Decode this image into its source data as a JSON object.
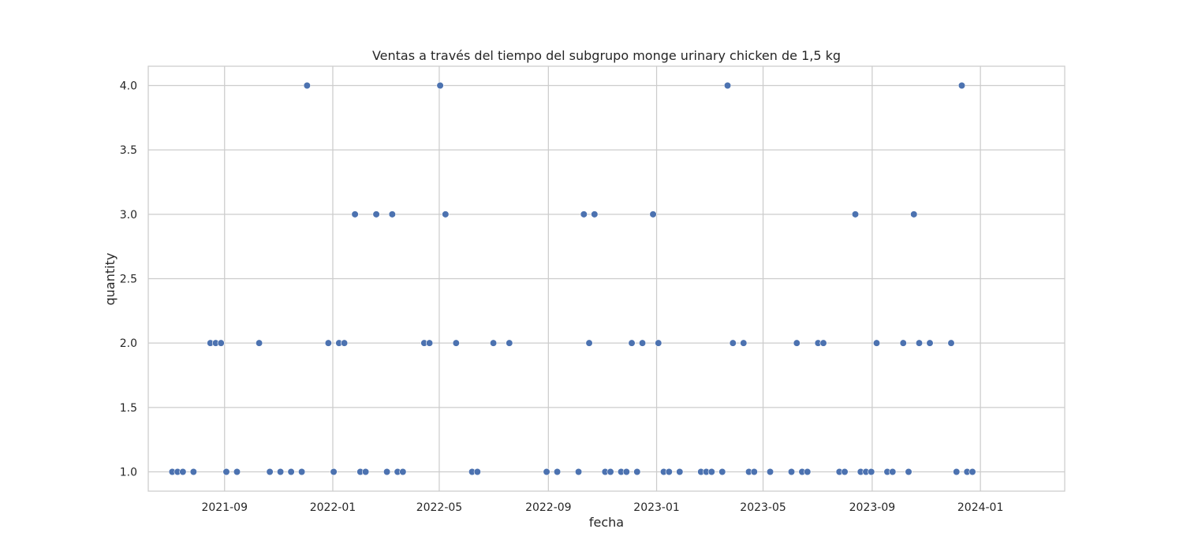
{
  "chart_data": {
    "type": "scatter",
    "title": "Ventas a través del tiempo del subgrupo monge urinary  chicken de 1,5 kg",
    "xlabel": "fecha",
    "ylabel": "quantity",
    "x_tick_labels": [
      "2021-09",
      "2022-01",
      "2022-05",
      "2022-09",
      "2023-01",
      "2023-05",
      "2023-09",
      "2024-01"
    ],
    "y_tick_labels": [
      "1.0",
      "1.5",
      "2.0",
      "2.5",
      "3.0",
      "3.5",
      "4.0"
    ],
    "xlim": [
      "2021-06-07",
      "2024-04-05"
    ],
    "ylim": [
      0.85,
      4.15
    ],
    "grid": true,
    "marker_color": "#4c72b0",
    "series": [
      {
        "points": [
          {
            "x": "2021-07-04",
            "y": 1
          },
          {
            "x": "2021-07-10",
            "y": 1
          },
          {
            "x": "2021-07-16",
            "y": 1
          },
          {
            "x": "2021-07-28",
            "y": 1
          },
          {
            "x": "2021-08-16",
            "y": 2
          },
          {
            "x": "2021-08-22",
            "y": 2
          },
          {
            "x": "2021-08-28",
            "y": 2
          },
          {
            "x": "2021-09-03",
            "y": 1
          },
          {
            "x": "2021-09-15",
            "y": 1
          },
          {
            "x": "2021-10-10",
            "y": 2
          },
          {
            "x": "2021-10-22",
            "y": 1
          },
          {
            "x": "2021-11-03",
            "y": 1
          },
          {
            "x": "2021-11-15",
            "y": 1
          },
          {
            "x": "2021-11-27",
            "y": 1
          },
          {
            "x": "2021-12-03",
            "y": 4
          },
          {
            "x": "2021-12-27",
            "y": 2
          },
          {
            "x": "2022-01-02",
            "y": 1
          },
          {
            "x": "2022-01-08",
            "y": 2
          },
          {
            "x": "2022-01-14",
            "y": 2
          },
          {
            "x": "2022-01-26",
            "y": 3
          },
          {
            "x": "2022-02-01",
            "y": 1
          },
          {
            "x": "2022-02-07",
            "y": 1
          },
          {
            "x": "2022-02-19",
            "y": 3
          },
          {
            "x": "2022-03-03",
            "y": 1
          },
          {
            "x": "2022-03-09",
            "y": 3
          },
          {
            "x": "2022-03-15",
            "y": 1
          },
          {
            "x": "2022-03-21",
            "y": 1
          },
          {
            "x": "2022-04-14",
            "y": 2
          },
          {
            "x": "2022-04-20",
            "y": 2
          },
          {
            "x": "2022-05-02",
            "y": 4
          },
          {
            "x": "2022-05-08",
            "y": 3
          },
          {
            "x": "2022-05-20",
            "y": 2
          },
          {
            "x": "2022-06-07",
            "y": 1
          },
          {
            "x": "2022-06-13",
            "y": 1
          },
          {
            "x": "2022-07-01",
            "y": 2
          },
          {
            "x": "2022-07-19",
            "y": 2
          },
          {
            "x": "2022-08-30",
            "y": 1
          },
          {
            "x": "2022-09-11",
            "y": 1
          },
          {
            "x": "2022-10-05",
            "y": 1
          },
          {
            "x": "2022-10-11",
            "y": 3
          },
          {
            "x": "2022-10-17",
            "y": 2
          },
          {
            "x": "2022-10-23",
            "y": 3
          },
          {
            "x": "2022-11-04",
            "y": 1
          },
          {
            "x": "2022-11-10",
            "y": 1
          },
          {
            "x": "2022-11-22",
            "y": 1
          },
          {
            "x": "2022-11-28",
            "y": 1
          },
          {
            "x": "2022-12-04",
            "y": 2
          },
          {
            "x": "2022-12-10",
            "y": 1
          },
          {
            "x": "2022-12-16",
            "y": 2
          },
          {
            "x": "2022-12-28",
            "y": 3
          },
          {
            "x": "2023-01-03",
            "y": 2
          },
          {
            "x": "2023-01-09",
            "y": 1
          },
          {
            "x": "2023-01-15",
            "y": 1
          },
          {
            "x": "2023-01-27",
            "y": 1
          },
          {
            "x": "2023-02-20",
            "y": 1
          },
          {
            "x": "2023-02-26",
            "y": 1
          },
          {
            "x": "2023-03-04",
            "y": 1
          },
          {
            "x": "2023-03-16",
            "y": 1
          },
          {
            "x": "2023-03-22",
            "y": 4
          },
          {
            "x": "2023-03-28",
            "y": 2
          },
          {
            "x": "2023-04-09",
            "y": 2
          },
          {
            "x": "2023-04-15",
            "y": 1
          },
          {
            "x": "2023-04-21",
            "y": 1
          },
          {
            "x": "2023-05-09",
            "y": 1
          },
          {
            "x": "2023-06-02",
            "y": 1
          },
          {
            "x": "2023-06-08",
            "y": 2
          },
          {
            "x": "2023-06-14",
            "y": 1
          },
          {
            "x": "2023-06-20",
            "y": 1
          },
          {
            "x": "2023-07-02",
            "y": 2
          },
          {
            "x": "2023-07-08",
            "y": 2
          },
          {
            "x": "2023-07-26",
            "y": 1
          },
          {
            "x": "2023-08-01",
            "y": 1
          },
          {
            "x": "2023-08-13",
            "y": 3
          },
          {
            "x": "2023-08-19",
            "y": 1
          },
          {
            "x": "2023-08-25",
            "y": 1
          },
          {
            "x": "2023-08-31",
            "y": 1
          },
          {
            "x": "2023-09-06",
            "y": 2
          },
          {
            "x": "2023-09-18",
            "y": 1
          },
          {
            "x": "2023-09-24",
            "y": 1
          },
          {
            "x": "2023-10-06",
            "y": 2
          },
          {
            "x": "2023-10-12",
            "y": 1
          },
          {
            "x": "2023-10-18",
            "y": 3
          },
          {
            "x": "2023-10-24",
            "y": 2
          },
          {
            "x": "2023-11-05",
            "y": 2
          },
          {
            "x": "2023-11-29",
            "y": 2
          },
          {
            "x": "2023-12-05",
            "y": 1
          },
          {
            "x": "2023-12-11",
            "y": 4
          },
          {
            "x": "2023-12-17",
            "y": 1
          },
          {
            "x": "2023-12-23",
            "y": 1
          }
        ]
      }
    ]
  }
}
